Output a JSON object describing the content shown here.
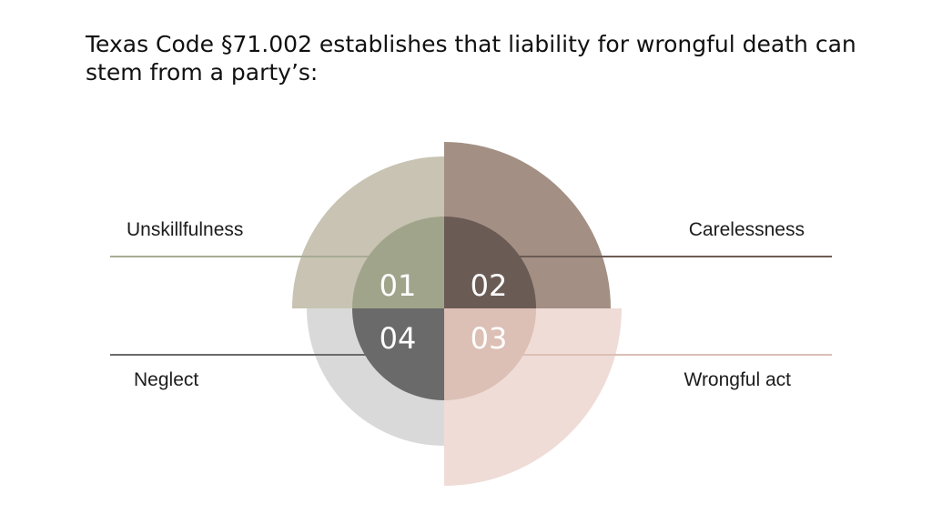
{
  "title": "Texas Code §71.002 establishes that liability for wrongful death can stem from a party’s:",
  "items": [
    {
      "number": "01",
      "label": "Unskillfulness",
      "outer_color": "#c8c3b2",
      "inner_color": "#a0a48b",
      "line_color": "#a8ab95"
    },
    {
      "number": "02",
      "label": "Carelessness",
      "outer_color": "#a38f84",
      "inner_color": "#6b5b55",
      "line_color": "#6b5b55"
    },
    {
      "number": "03",
      "label": "Wrongful act",
      "outer_color": "#efdcd6",
      "inner_color": "#dcbfb5",
      "line_color": "#dcbfb5"
    },
    {
      "number": "04",
      "label": "Neglect",
      "outer_color": "#d9d9d9",
      "inner_color": "#6a6a6a",
      "line_color": "#6a6a6a"
    }
  ]
}
